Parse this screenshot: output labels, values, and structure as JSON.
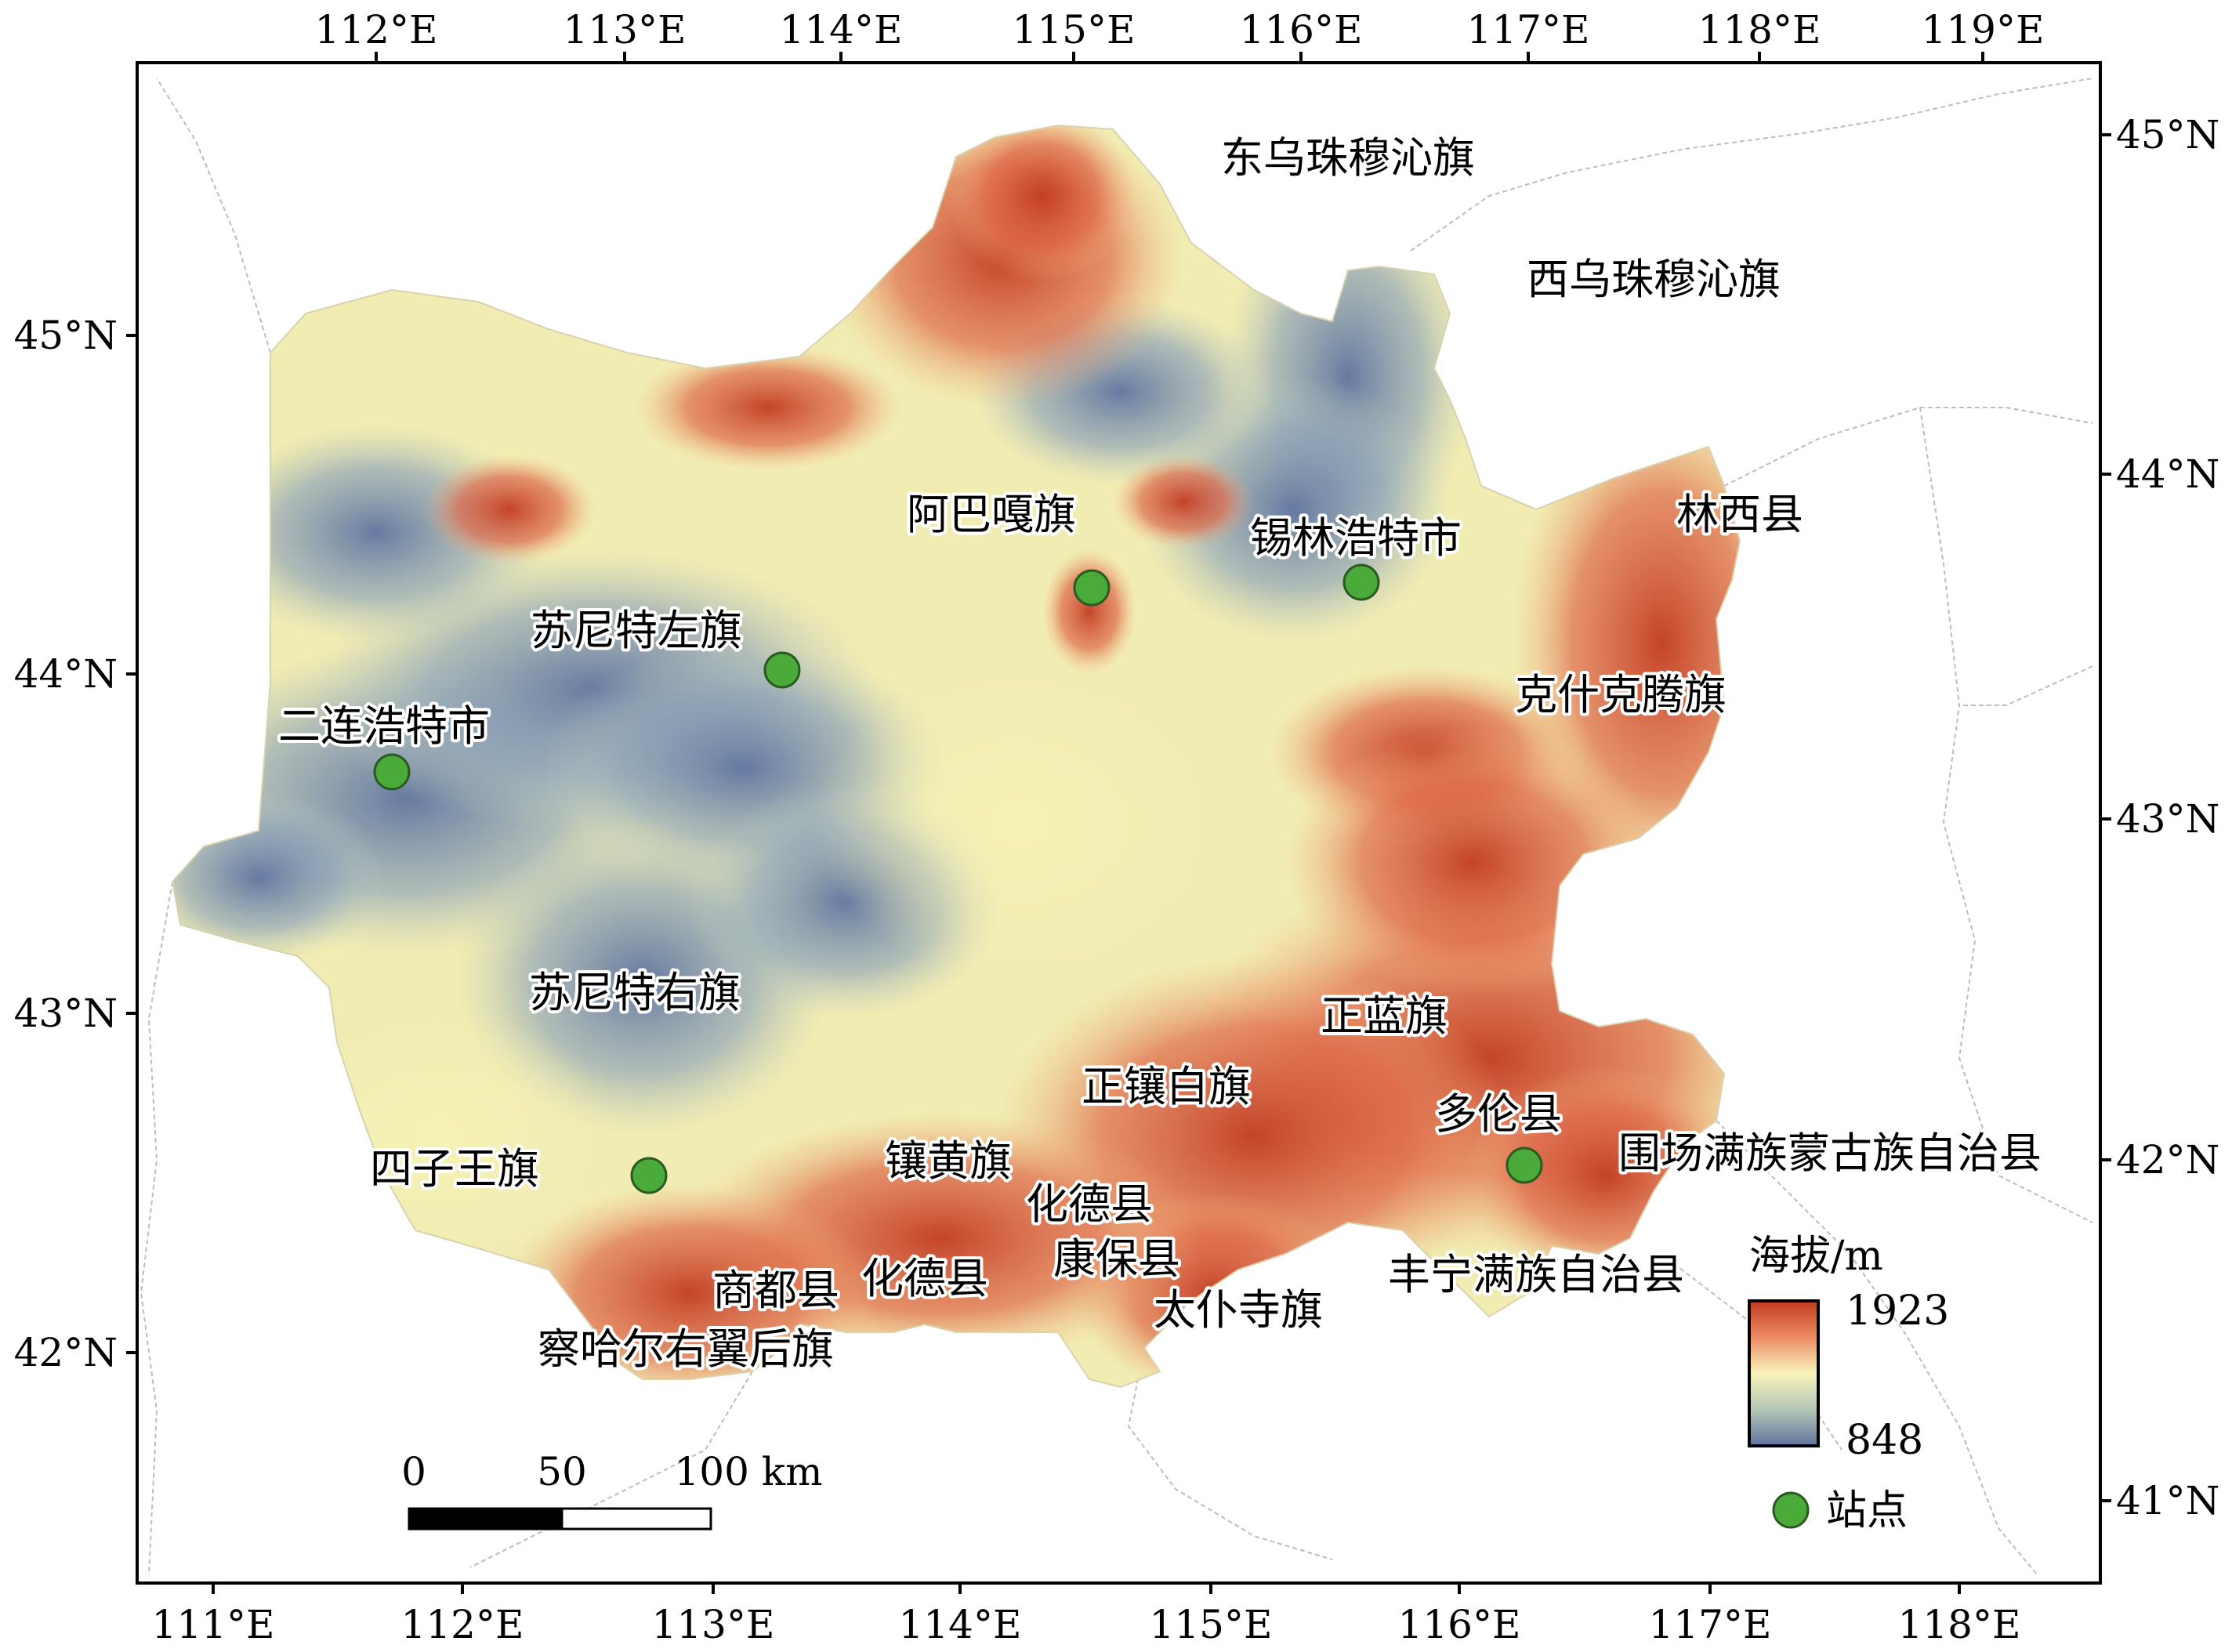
{
  "top_axis_labels": [
    "112°E",
    "113°E",
    "114°E",
    "115°E",
    "116°E",
    "117°E",
    "118°E",
    "119°E"
  ],
  "bottom_axis_labels": [
    "111°E",
    "112°E",
    "113°E",
    "114°E",
    "115°E",
    "116°E",
    "117°E",
    "118°E"
  ],
  "left_axis_labels": [
    "45°N",
    "44°N",
    "43°N",
    "42°N"
  ],
  "right_axis_labels": [
    "45°N",
    "44°N",
    "43°N",
    "42°N",
    "41°N"
  ],
  "region_labels": {
    "dongwu": "东乌珠穆沁旗",
    "xiwu": "西乌珠穆沁旗",
    "abag": "阿巴嘎旗",
    "xilin": "锡林浩特市",
    "linxi": "林西县",
    "sunitezuo": "苏尼特左旗",
    "erlian": "二连浩特市",
    "keshiketeng": "克什克腾旗",
    "suniteyou": "苏尼特右旗",
    "zhenglan": "正蓝旗",
    "zhengxiangbai": "正镶白旗",
    "duolun": "多伦县",
    "weichang": "围场满族蒙古族自治县",
    "siziwang": "四子王旗",
    "xianghuang": "镶黄旗",
    "huade1": "化德县",
    "kangbao": "康保县",
    "shangdu": "商都县",
    "huade2": "化德县",
    "taipusi": "太仆寺旗",
    "fengning": "丰宁满族自治县",
    "chahar": "察哈尔右翼后旗"
  },
  "scale_bar": {
    "labels": [
      "0",
      "50",
      "100 km"
    ]
  },
  "legend": {
    "title": "海拔/m",
    "max_value": "1923",
    "min_value": "848",
    "station_label": "站点",
    "colors": [
      "#c23b22",
      "#e9795d",
      "#f7f3b6",
      "#b9c9b4",
      "#6b7ea5"
    ],
    "station_color": "#4aab3a"
  },
  "stations": [
    "二连浩特市",
    "苏尼特左旗",
    "阿巴嘎旗",
    "锡林浩特市",
    "四子王旗",
    "多伦县"
  ]
}
